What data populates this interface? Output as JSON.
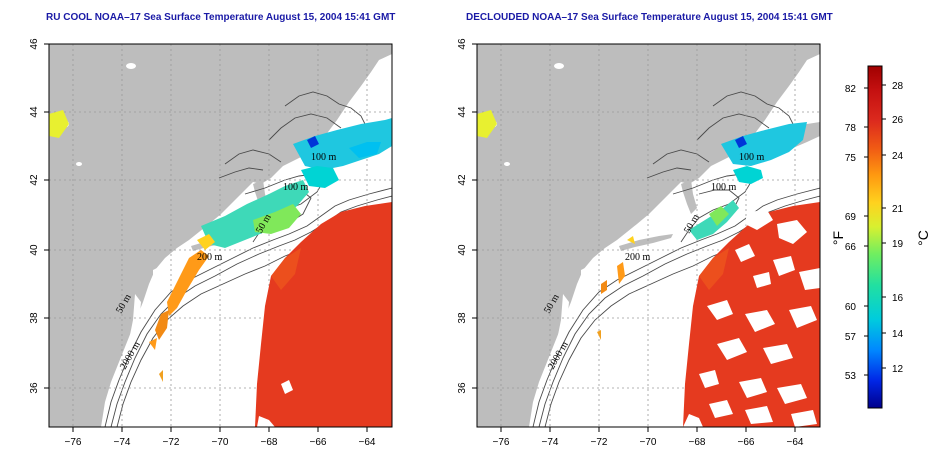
{
  "panels": [
    {
      "title": "RU COOL NOAA–17 Sea Surface Temperature August 15, 2004 15:41 GMT"
    },
    {
      "title": "DECLOUDED NOAA–17 Sea Surface Temperature August 15, 2004 15:41 GMT"
    }
  ],
  "axes": {
    "lon_ticks": [
      "−76",
      "−74",
      "−72",
      "−70",
      "−68",
      "−66",
      "−64"
    ],
    "lat_ticks": [
      "46",
      "44",
      "42",
      "40",
      "38",
      "36"
    ]
  },
  "contour_labels": {
    "left": [
      "100 m",
      "100 m",
      "50 m",
      "200 m",
      "50 m",
      "2000 m"
    ],
    "right": [
      "100 m",
      "100 m",
      "50 m",
      "200 m",
      "50 m",
      "2000 m"
    ]
  },
  "colorbar": {
    "fahrenheit_ticks": [
      "82",
      "78",
      "75",
      "69",
      "66",
      "60",
      "57",
      "53"
    ],
    "celsius_ticks": [
      "28",
      "26",
      "24",
      "21",
      "19",
      "16",
      "14",
      "12"
    ],
    "fahrenheit_unit": "°F",
    "celsius_unit": "°C",
    "colors": [
      "#00008c",
      "#0026e6",
      "#0088ff",
      "#00ccdd",
      "#22e0a0",
      "#70ee60",
      "#d8f030",
      "#ffd21e",
      "#ff9a10",
      "#f05a14",
      "#dc2a1e",
      "#c41010",
      "#a00000"
    ]
  },
  "map_colors": {
    "land": "#bdbdbd",
    "ocean": "#ffffff",
    "warm_sst": "#e82e1e"
  }
}
